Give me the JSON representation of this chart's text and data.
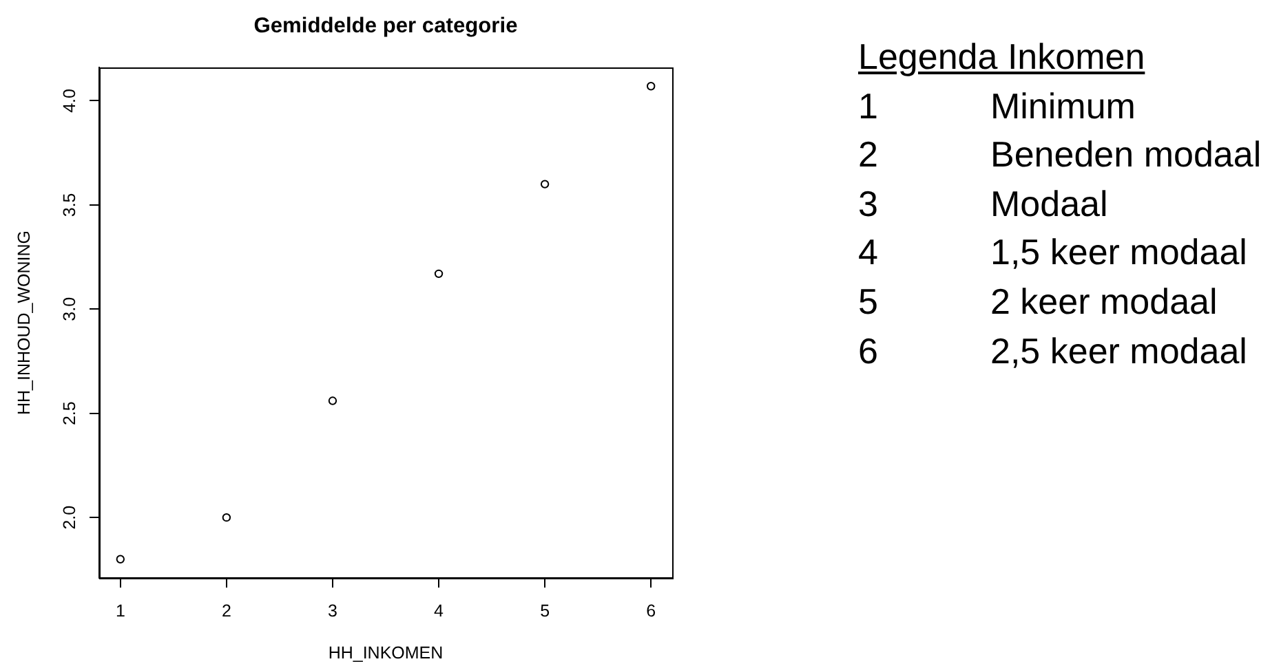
{
  "chart_data": {
    "type": "scatter",
    "title": "Gemiddelde per categorie",
    "xlabel": "HH_INKOMEN",
    "ylabel": "HH_INHOUD_WONING",
    "x": [
      1,
      2,
      3,
      4,
      5,
      6
    ],
    "series": [
      {
        "color": "#000000",
        "values": [
          1.8,
          2.0,
          2.56,
          3.17,
          3.6,
          4.07
        ]
      }
    ],
    "xlim": [
      0.8,
      6.2
    ],
    "ylim": [
      1.71,
      4.16
    ],
    "xticks": [
      1,
      2,
      3,
      4,
      5,
      6
    ],
    "yticks": [
      {
        "value": 2,
        "label": "2.0"
      },
      2.5,
      {
        "value": 3,
        "label": "3.0"
      },
      3.5,
      {
        "value": 4,
        "label": "4.0"
      }
    ],
    "marker": "circle",
    "annotations": [
      "Legenda Inkomen",
      "1",
      "Minimum",
      "2",
      "Beneden modaal",
      "3",
      "Modaal",
      "4",
      "1,5 keer modaal",
      "5",
      "2 keer modaal",
      "6",
      "2,5 keer modaal"
    ]
  }
}
